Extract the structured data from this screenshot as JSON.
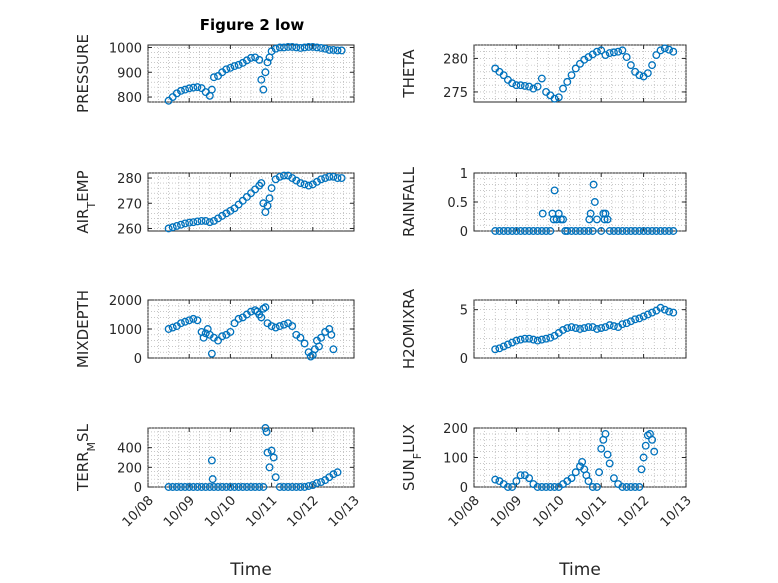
{
  "figure_title": "Figure 2 low",
  "marker_color": "#0072BD",
  "chart_data": [
    {
      "type": "scatter",
      "id": "pressure",
      "ylabel": "PRESSURE",
      "xlim": [
        "10/08",
        "10/13"
      ],
      "ylim": [
        780,
        1010
      ],
      "yticks": [
        800,
        900,
        1000
      ],
      "grid": true,
      "ylabel_parts": [
        {
          "t": "PRESSURE"
        }
      ],
      "x": [
        0.5,
        0.6,
        0.7,
        0.8,
        0.9,
        1.0,
        1.1,
        1.2,
        1.3,
        1.4,
        1.5,
        1.55,
        1.6,
        1.7,
        1.8,
        1.9,
        2.0,
        2.1,
        2.2,
        2.3,
        2.4,
        2.5,
        2.6,
        2.7,
        2.75,
        2.8,
        2.85,
        2.9,
        2.95,
        3.0,
        3.1,
        3.2,
        3.3,
        3.4,
        3.5,
        3.6,
        3.7,
        3.8,
        3.9,
        4.0,
        4.1,
        4.2,
        4.3,
        4.4,
        4.5,
        4.6,
        4.7
      ],
      "y": [
        785,
        800,
        815,
        825,
        830,
        835,
        838,
        840,
        836,
        820,
        805,
        830,
        880,
        885,
        900,
        912,
        918,
        925,
        930,
        938,
        948,
        958,
        960,
        950,
        870,
        830,
        900,
        940,
        960,
        985,
        995,
        1000,
        1000,
        1002,
        1002,
        1000,
        998,
        1000,
        1002,
        1002,
        1000,
        998,
        995,
        990,
        990,
        988,
        988
      ]
    },
    {
      "type": "scatter",
      "id": "theta",
      "ylabel": "THETA",
      "xlim": [
        "10/08",
        "10/13"
      ],
      "ylim": [
        273.5,
        282
      ],
      "yticks": [
        275,
        280
      ],
      "grid": true,
      "ylabel_parts": [
        {
          "t": "THETA"
        }
      ],
      "x": [
        0.5,
        0.6,
        0.7,
        0.8,
        0.9,
        1.0,
        1.1,
        1.2,
        1.3,
        1.4,
        1.5,
        1.6,
        1.7,
        1.8,
        1.9,
        2.0,
        2.1,
        2.2,
        2.3,
        2.4,
        2.5,
        2.6,
        2.7,
        2.8,
        2.9,
        3.0,
        3.1,
        3.2,
        3.3,
        3.4,
        3.5,
        3.6,
        3.7,
        3.8,
        3.9,
        4.0,
        4.1,
        4.2,
        4.3,
        4.4,
        4.5,
        4.6,
        4.7
      ],
      "y": [
        278.5,
        278,
        277.5,
        276.8,
        276.3,
        276,
        276,
        275.9,
        275.8,
        275.5,
        275.8,
        277,
        275,
        274.5,
        274,
        274.2,
        275.5,
        276.5,
        277.5,
        278.5,
        279.2,
        279.8,
        280.2,
        280.6,
        281,
        281.2,
        280.5,
        280.8,
        280.9,
        281,
        281.2,
        280.2,
        279,
        278,
        277.5,
        277.3,
        277.8,
        279,
        280.5,
        281.2,
        281.5,
        281.3,
        281
      ]
    },
    {
      "type": "scatter",
      "id": "air_temp",
      "ylabel": "AIR_TEMP",
      "xlim": [
        "10/08",
        "10/13"
      ],
      "ylim": [
        259,
        282
      ],
      "yticks": [
        260,
        270,
        280
      ],
      "grid": true,
      "ylabel_parts": [
        {
          "t": "AIR"
        },
        {
          "t": "T",
          "sub": true
        },
        {
          "t": "EMP"
        }
      ],
      "x": [
        0.5,
        0.6,
        0.7,
        0.8,
        0.9,
        1.0,
        1.1,
        1.2,
        1.3,
        1.4,
        1.5,
        1.6,
        1.7,
        1.8,
        1.9,
        2.0,
        2.1,
        2.2,
        2.3,
        2.4,
        2.5,
        2.6,
        2.7,
        2.75,
        2.8,
        2.85,
        2.9,
        2.95,
        3.0,
        3.1,
        3.2,
        3.3,
        3.4,
        3.5,
        3.6,
        3.7,
        3.8,
        3.9,
        4.0,
        4.1,
        4.2,
        4.3,
        4.4,
        4.5,
        4.6,
        4.7
      ],
      "y": [
        260,
        260.5,
        261,
        261.5,
        262,
        262.3,
        262.5,
        262.8,
        263,
        263,
        262.5,
        263,
        264,
        265,
        266,
        267,
        268,
        269.5,
        271,
        272.5,
        274,
        275.5,
        277,
        278,
        270,
        266.5,
        269,
        272,
        276,
        279.5,
        280.5,
        281,
        281,
        280,
        279,
        278,
        277.5,
        277,
        277.5,
        278.5,
        279.5,
        280,
        280.5,
        280.5,
        280,
        280
      ]
    },
    {
      "type": "scatter",
      "id": "rainfall",
      "ylabel": "RAINFALL",
      "xlim": [
        "10/08",
        "10/13"
      ],
      "ylim": [
        0,
        1
      ],
      "yticks": [
        0,
        0.5,
        1
      ],
      "grid": true,
      "ylabel_parts": [
        {
          "t": "RAINFALL"
        }
      ],
      "x": [
        0.5,
        0.6,
        0.7,
        0.8,
        0.9,
        1.0,
        1.1,
        1.2,
        1.3,
        1.4,
        1.5,
        1.6,
        1.62,
        1.7,
        1.8,
        1.85,
        1.88,
        1.9,
        1.95,
        2.0,
        2.05,
        2.1,
        2.15,
        2.2,
        2.3,
        2.4,
        2.5,
        2.6,
        2.7,
        2.72,
        2.75,
        2.8,
        2.82,
        2.85,
        2.9,
        3.0,
        3.05,
        3.08,
        3.1,
        3.15,
        3.2,
        3.3,
        3.4,
        3.5,
        3.6,
        3.7,
        3.8,
        3.9,
        4.0,
        4.1,
        4.2,
        4.3,
        4.4,
        4.5,
        4.6,
        4.7
      ],
      "y": [
        0,
        0,
        0,
        0,
        0,
        0,
        0,
        0,
        0,
        0,
        0,
        0,
        0.3,
        0,
        0,
        0.3,
        0.2,
        0.7,
        0.2,
        0.3,
        0.2,
        0.2,
        0,
        0,
        0,
        0,
        0,
        0,
        0,
        0.2,
        0.3,
        0,
        0.8,
        0.5,
        0.2,
        0,
        0.3,
        0.2,
        0.3,
        0.2,
        0,
        0,
        0,
        0,
        0,
        0,
        0,
        0,
        0,
        0,
        0,
        0,
        0,
        0,
        0,
        0
      ]
    },
    {
      "type": "scatter",
      "id": "mixdepth",
      "ylabel": "MIXDEPTH",
      "xlim": [
        "10/08",
        "10/13"
      ],
      "ylim": [
        0,
        2000
      ],
      "yticks": [
        0,
        1000,
        2000
      ],
      "grid": true,
      "ylabel_parts": [
        {
          "t": "MIXDEPTH"
        }
      ],
      "x": [
        0.5,
        0.6,
        0.7,
        0.8,
        0.9,
        1.0,
        1.1,
        1.2,
        1.3,
        1.35,
        1.4,
        1.45,
        1.5,
        1.55,
        1.6,
        1.7,
        1.8,
        1.9,
        2.0,
        2.1,
        2.2,
        2.3,
        2.4,
        2.5,
        2.6,
        2.65,
        2.7,
        2.75,
        2.8,
        2.85,
        2.9,
        3.0,
        3.1,
        3.2,
        3.3,
        3.4,
        3.5,
        3.6,
        3.7,
        3.8,
        3.9,
        3.95,
        4.0,
        4.05,
        4.1,
        4.15,
        4.2,
        4.3,
        4.4,
        4.45,
        4.5
      ],
      "y": [
        1000,
        1050,
        1100,
        1200,
        1250,
        1300,
        1350,
        1300,
        900,
        700,
        850,
        1000,
        800,
        150,
        700,
        600,
        750,
        800,
        900,
        1200,
        1350,
        1400,
        1500,
        1600,
        1650,
        1600,
        1500,
        1400,
        1700,
        1750,
        1200,
        1100,
        1050,
        1100,
        1150,
        1200,
        1100,
        800,
        700,
        500,
        200,
        50,
        100,
        300,
        600,
        400,
        700,
        900,
        1000,
        800,
        300
      ]
    },
    {
      "type": "scatter",
      "id": "h2omixra",
      "ylabel": "H2OMIXRA",
      "xlim": [
        "10/08",
        "10/13"
      ],
      "ylim": [
        0,
        6
      ],
      "yticks": [
        0,
        5
      ],
      "grid": true,
      "ylabel_parts": [
        {
          "t": "H2OMIXRA"
        }
      ],
      "x": [
        0.5,
        0.6,
        0.7,
        0.8,
        0.9,
        1.0,
        1.1,
        1.2,
        1.3,
        1.4,
        1.5,
        1.6,
        1.7,
        1.8,
        1.9,
        2.0,
        2.1,
        2.2,
        2.3,
        2.4,
        2.5,
        2.6,
        2.7,
        2.8,
        2.9,
        3.0,
        3.1,
        3.2,
        3.3,
        3.4,
        3.5,
        3.6,
        3.7,
        3.8,
        3.9,
        4.0,
        4.1,
        4.2,
        4.3,
        4.4,
        4.5,
        4.6,
        4.7
      ],
      "y": [
        0.9,
        1.0,
        1.2,
        1.4,
        1.6,
        1.8,
        1.9,
        2.0,
        2.0,
        1.9,
        1.8,
        1.9,
        2.0,
        2.1,
        2.3,
        2.6,
        2.9,
        3.1,
        3.2,
        3.1,
        3.0,
        3.1,
        3.2,
        3.2,
        3.0,
        3.1,
        3.2,
        3.4,
        3.3,
        3.2,
        3.5,
        3.6,
        3.8,
        4.0,
        4.1,
        4.3,
        4.5,
        4.7,
        4.9,
        5.2,
        5.0,
        4.8,
        4.7
      ]
    },
    {
      "type": "scatter",
      "id": "terr_msl",
      "ylabel": "TERR_MSL",
      "xlim": [
        "10/08",
        "10/13"
      ],
      "ylim": [
        0,
        600
      ],
      "yticks": [
        0,
        200,
        400
      ],
      "grid": true,
      "ylabel_parts": [
        {
          "t": "TERR"
        },
        {
          "t": "M",
          "sub": true
        },
        {
          "t": "SL"
        }
      ],
      "x": [
        0.5,
        0.6,
        0.7,
        0.8,
        0.9,
        1.0,
        1.1,
        1.2,
        1.3,
        1.4,
        1.5,
        1.55,
        1.57,
        1.6,
        1.7,
        1.8,
        1.9,
        2.0,
        2.1,
        2.2,
        2.3,
        2.4,
        2.5,
        2.6,
        2.7,
        2.8,
        2.85,
        2.88,
        2.9,
        2.95,
        3.0,
        3.05,
        3.1,
        3.2,
        3.3,
        3.4,
        3.5,
        3.6,
        3.7,
        3.8,
        3.9,
        4.0,
        4.1,
        4.2,
        4.3,
        4.4,
        4.5,
        4.6
      ],
      "y": [
        0,
        0,
        0,
        0,
        0,
        0,
        0,
        0,
        0,
        0,
        0,
        270,
        80,
        0,
        0,
        0,
        0,
        0,
        0,
        0,
        0,
        0,
        0,
        0,
        0,
        0,
        600,
        560,
        350,
        200,
        370,
        300,
        100,
        0,
        0,
        0,
        0,
        0,
        0,
        0,
        10,
        20,
        40,
        50,
        70,
        100,
        130,
        150
      ]
    },
    {
      "type": "scatter",
      "id": "sun_flux",
      "ylabel": "SUN_FLUX",
      "xlim": [
        "10/08",
        "10/13"
      ],
      "ylim": [
        0,
        200
      ],
      "yticks": [
        0,
        100,
        200
      ],
      "grid": true,
      "ylabel_parts": [
        {
          "t": "SUN"
        },
        {
          "t": "F",
          "sub": true
        },
        {
          "t": "LUX"
        }
      ],
      "x": [
        0.5,
        0.6,
        0.7,
        0.8,
        0.9,
        1.0,
        1.1,
        1.2,
        1.3,
        1.4,
        1.5,
        1.6,
        1.7,
        1.8,
        1.9,
        2.0,
        2.1,
        2.2,
        2.3,
        2.4,
        2.5,
        2.55,
        2.6,
        2.65,
        2.7,
        2.8,
        2.9,
        2.95,
        3.0,
        3.05,
        3.1,
        3.15,
        3.2,
        3.3,
        3.4,
        3.5,
        3.6,
        3.7,
        3.8,
        3.9,
        3.95,
        4.0,
        4.05,
        4.1,
        4.15,
        4.2,
        4.25
      ],
      "y": [
        25,
        20,
        10,
        0,
        0,
        20,
        40,
        40,
        30,
        10,
        0,
        0,
        0,
        0,
        0,
        0,
        10,
        20,
        30,
        50,
        70,
        85,
        60,
        40,
        20,
        0,
        0,
        50,
        130,
        160,
        180,
        110,
        80,
        30,
        10,
        0,
        0,
        0,
        0,
        0,
        60,
        100,
        140,
        175,
        180,
        160,
        120
      ]
    }
  ],
  "x_axis": {
    "tick_labels": [
      "10/08",
      "10/09",
      "10/10",
      "10/11",
      "10/12",
      "10/13"
    ],
    "xlabel": "Time"
  }
}
